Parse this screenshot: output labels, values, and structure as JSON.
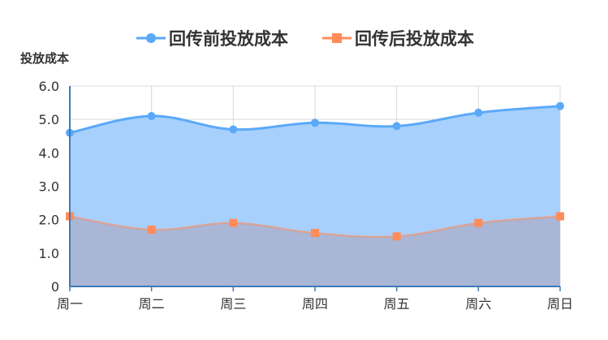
{
  "chart_data": {
    "type": "area",
    "categories": [
      "周一",
      "周二",
      "周三",
      "周四",
      "周五",
      "周六",
      "周日"
    ],
    "series": [
      {
        "name": "回传前投放成本",
        "values": [
          4.6,
          5.1,
          4.7,
          4.9,
          4.8,
          5.2,
          5.4
        ],
        "color": "#5aa9f9",
        "fill": "#a8d0fc",
        "marker": "circle"
      },
      {
        "name": "回传后投放成本",
        "values": [
          2.1,
          1.7,
          1.9,
          1.6,
          1.5,
          1.9,
          2.1
        ],
        "color": "#ff8c5a",
        "fill": "#a9b4d4",
        "marker": "square"
      }
    ],
    "title": "",
    "xlabel": "",
    "ylabel": "投放成本",
    "ylim": [
      0,
      6
    ],
    "yticks": [
      "0",
      "1.0",
      "2.0",
      "3.0",
      "4.0",
      "5.0",
      "6.0"
    ],
    "grid": true,
    "legend": "top-center",
    "smooth": true
  }
}
